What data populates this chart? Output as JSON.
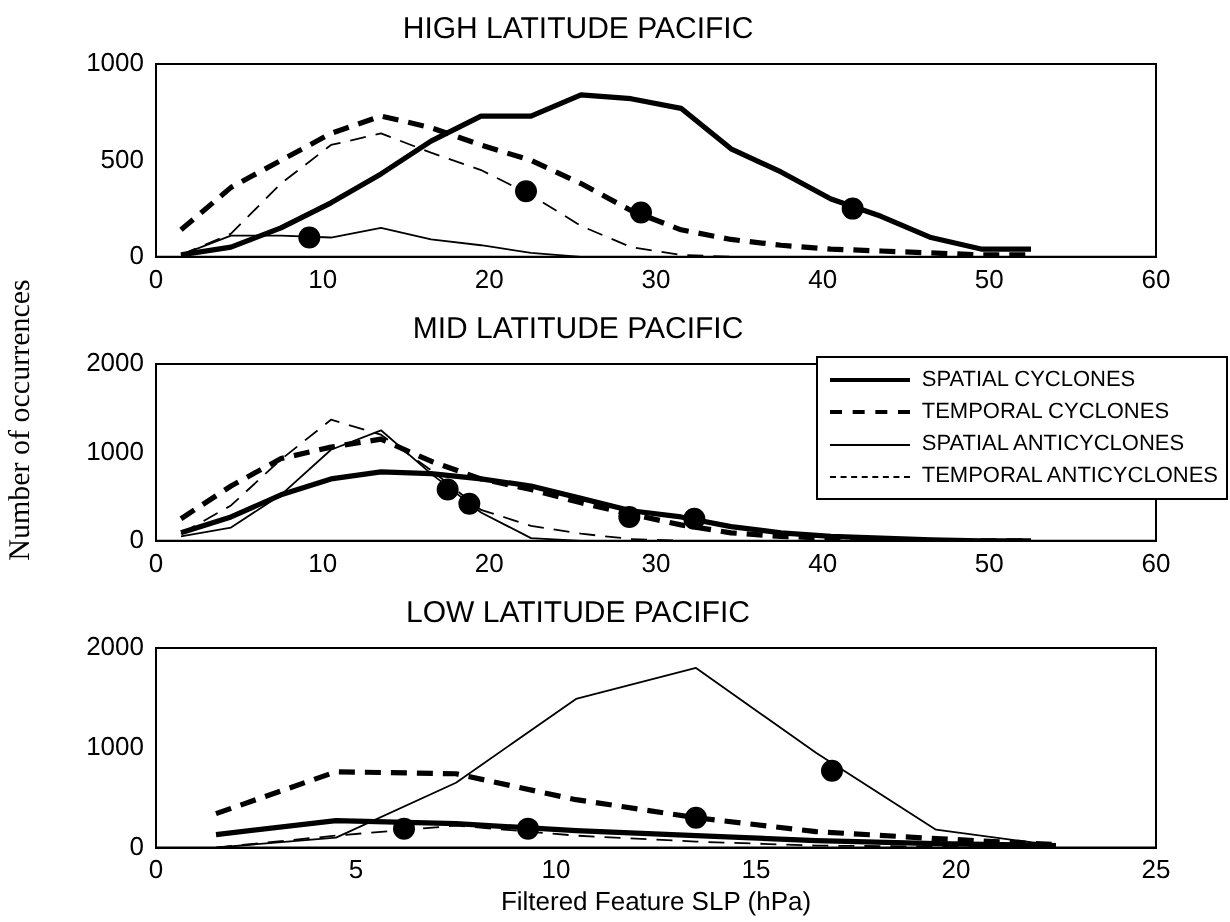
{
  "chart_data": [
    {
      "type": "line",
      "title": "HIGH LATITUDE PACIFIC",
      "xlim": [
        0,
        60
      ],
      "xticks": [
        0,
        10,
        20,
        30,
        40,
        50,
        60
      ],
      "ylim": [
        0,
        1000
      ],
      "yticks": [
        0,
        500,
        1000
      ],
      "grid": false,
      "legend": false,
      "x": [
        1.5,
        4.5,
        7.5,
        10.5,
        13.5,
        16.5,
        19.5,
        22.5,
        25.5,
        28.5,
        31.5,
        34.5,
        37.5,
        40.5,
        43.5,
        46.5,
        49.5,
        52.5
      ],
      "series": [
        {
          "color": "#000000",
          "line_style": "solid",
          "marker": "none",
          "values": [
            10,
            50,
            150,
            280,
            430,
            600,
            730,
            730,
            840,
            820,
            770,
            560,
            440,
            300,
            210,
            100,
            40,
            40
          ]
        },
        {
          "color": "#000000",
          "line_style": "dashed",
          "marker": "none",
          "values": [
            140,
            360,
            500,
            640,
            730,
            670,
            580,
            500,
            380,
            240,
            140,
            90,
            60,
            40,
            30,
            20,
            10,
            10
          ]
        },
        {
          "color": "#000000",
          "line_style": "solid",
          "marker": "none",
          "values": [
            10,
            110,
            110,
            100,
            150,
            90,
            60,
            20,
            0,
            0,
            0,
            0,
            0,
            0,
            0,
            0,
            0,
            0
          ]
        },
        {
          "color": "#000000",
          "line_style": "dashed",
          "marker": "none",
          "values": [
            10,
            120,
            380,
            580,
            640,
            540,
            450,
            320,
            160,
            50,
            10,
            0,
            0,
            0,
            0,
            0,
            0,
            0
          ]
        },
        {
          "type": "scatter",
          "color": "#000000",
          "marker": "circle",
          "x": [
            9.2,
            22.2,
            29.1,
            41.8
          ],
          "values": [
            100,
            340,
            230,
            250
          ]
        }
      ]
    },
    {
      "type": "line",
      "title": "MID LATITUDE PACIFIC",
      "ylabel": "Number of occurrences",
      "xlim": [
        0,
        60
      ],
      "xticks": [
        0,
        10,
        20,
        30,
        40,
        50,
        60
      ],
      "ylim": [
        0,
        2000
      ],
      "yticks": [
        0,
        1000,
        2000
      ],
      "grid": false,
      "legend": "top right",
      "x": [
        1.5,
        4.5,
        7.5,
        10.5,
        13.5,
        16.5,
        19.5,
        22.5,
        25.5,
        28.5,
        31.5,
        34.5,
        37.5,
        40.5,
        43.5,
        46.5,
        49.5,
        52.5
      ],
      "series": [
        {
          "name": "SPATIAL CYCLONES",
          "color": "#000000",
          "line_style": "solid",
          "marker": "none",
          "values": [
            90,
            270,
            520,
            700,
            780,
            760,
            700,
            620,
            480,
            340,
            270,
            160,
            90,
            50,
            30,
            10,
            0,
            0
          ]
        },
        {
          "name": "TEMPORAL CYCLONES",
          "color": "#000000",
          "line_style": "dashed",
          "marker": "none",
          "values": [
            250,
            620,
            930,
            1060,
            1150,
            900,
            700,
            580,
            430,
            300,
            180,
            90,
            50,
            30,
            10,
            0,
            0,
            0
          ]
        },
        {
          "name": "SPATIAL ANTICYCLONES",
          "color": "#000000",
          "line_style": "solid",
          "marker": "none",
          "values": [
            50,
            150,
            520,
            1030,
            1250,
            760,
            320,
            30,
            0,
            0,
            0,
            0,
            0,
            0,
            0,
            0,
            0,
            0
          ]
        },
        {
          "name": "TEMPORAL ANTICYCLONES",
          "color": "#000000",
          "line_style": "dashed",
          "marker": "none",
          "values": [
            80,
            400,
            920,
            1370,
            1200,
            800,
            350,
            170,
            80,
            20,
            0,
            0,
            0,
            0,
            0,
            0,
            0,
            0
          ]
        },
        {
          "type": "scatter",
          "color": "#000000",
          "marker": "circle",
          "x": [
            17.5,
            18.8,
            28.4,
            32.3
          ],
          "values": [
            580,
            420,
            270,
            250
          ]
        }
      ]
    },
    {
      "type": "line",
      "title": "LOW LATITUDE PACIFIC",
      "xlabel": "Filtered Feature SLP (hPa)",
      "xlim": [
        0,
        25
      ],
      "xticks": [
        0,
        5,
        10,
        15,
        20,
        25
      ],
      "ylim": [
        0,
        2000
      ],
      "yticks": [
        0,
        1000,
        2000
      ],
      "grid": false,
      "legend": false,
      "x": [
        1.5,
        4.5,
        7.5,
        10.5,
        13.5,
        16.5,
        19.5,
        22.5
      ],
      "series": [
        {
          "color": "#000000",
          "line_style": "solid",
          "marker": "none",
          "values": [
            130,
            270,
            240,
            170,
            120,
            70,
            40,
            20
          ]
        },
        {
          "color": "#000000",
          "line_style": "dashed",
          "marker": "none",
          "values": [
            340,
            760,
            740,
            480,
            300,
            160,
            90,
            30
          ]
        },
        {
          "color": "#000000",
          "line_style": "solid",
          "marker": "none",
          "values": [
            0,
            100,
            650,
            1490,
            1800,
            950,
            180,
            20
          ]
        },
        {
          "color": "#000000",
          "line_style": "dashed",
          "marker": "none",
          "values": [
            0,
            120,
            220,
            120,
            60,
            20,
            10,
            0
          ]
        },
        {
          "type": "scatter",
          "color": "#000000",
          "marker": "circle",
          "x": [
            6.2,
            9.3,
            13.5,
            16.9
          ],
          "values": [
            190,
            190,
            300,
            770
          ]
        }
      ]
    }
  ]
}
